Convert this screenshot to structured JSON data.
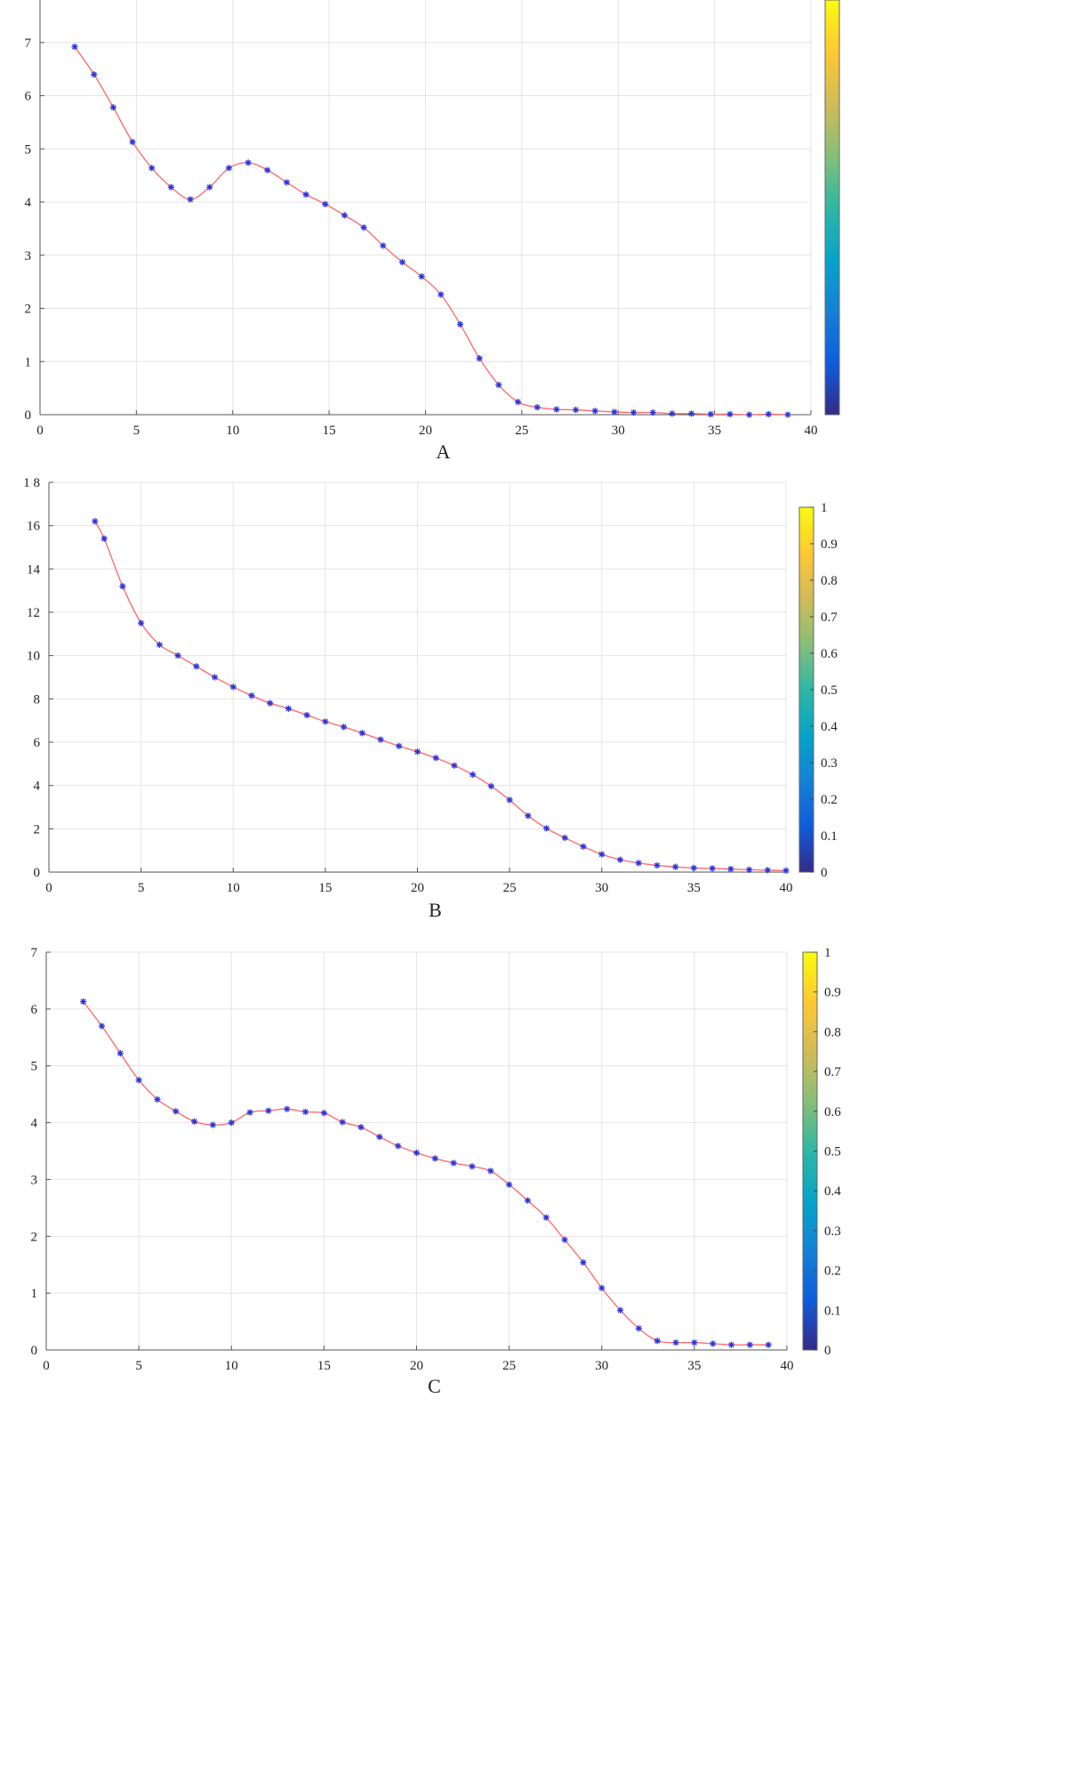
{
  "chart_data": [
    {
      "type": "line",
      "panel_label": "A",
      "xlim": [
        0,
        40
      ],
      "ylim": [
        0,
        7.8
      ],
      "xticks": [
        0,
        5,
        10,
        15,
        20,
        25,
        30,
        35,
        40
      ],
      "yticks": [
        0,
        1,
        2,
        3,
        4,
        5,
        6,
        7
      ],
      "ytick_labels": [
        "0",
        "1",
        "2",
        "3",
        "4",
        "5",
        "6",
        "7"
      ],
      "grid": true,
      "marker": "asterisk",
      "marker_color": "#2c35d8",
      "line_color": "#ff6f6f",
      "colorbar": {
        "range": [
          0,
          1
        ],
        "ticks": [],
        "colormap": "parula"
      },
      "series": [
        {
          "x": [
            1.8,
            2.8,
            3.8,
            4.8,
            5.8,
            6.8,
            7.8,
            8.8,
            9.8,
            10.8,
            11.8,
            12.8,
            13.8,
            14.8,
            15.8,
            16.8,
            17.8,
            18.8,
            19.8,
            20.8,
            21.8,
            22.8,
            23.8,
            24.8,
            25.8,
            26.8,
            27.8,
            28.8,
            29.8,
            30.8,
            31.8,
            32.8,
            33.8,
            34.8,
            35.8,
            36.8,
            37.8,
            38.8
          ],
          "y": [
            6.92,
            6.4,
            5.78,
            5.13,
            4.64,
            4.28,
            4.05,
            4.28,
            4.64,
            4.74,
            4.6,
            4.37,
            4.14,
            3.96,
            3.75,
            3.52,
            3.18,
            2.87,
            2.6,
            2.26,
            1.7,
            1.06,
            0.56,
            0.24,
            0.14,
            0.1,
            0.09,
            0.07,
            0.05,
            0.04,
            0.04,
            0.02,
            0.02,
            0.01,
            0.01,
            0.0,
            0.01,
            0.0
          ]
        }
      ]
    },
    {
      "type": "line",
      "panel_label": "B",
      "xlim": [
        0,
        40
      ],
      "ylim": [
        0,
        18
      ],
      "xticks": [
        0,
        5,
        10,
        15,
        20,
        25,
        30,
        35,
        40
      ],
      "yticks": [
        0,
        2,
        4,
        6,
        8,
        10,
        12,
        14,
        16,
        18
      ],
      "ytick_labels": [
        "0",
        "2",
        "4",
        "6",
        "8",
        "10",
        "12",
        "14",
        "16",
        "1 8"
      ],
      "grid": true,
      "marker": "asterisk",
      "marker_color": "#2c35d8",
      "line_color": "#ff6f6f",
      "colorbar": {
        "range": [
          0,
          1
        ],
        "ticks": [
          "0",
          "0.1",
          "0.2",
          "0.3",
          "0.4",
          "0.5",
          "0.6",
          "0.7",
          "0.8",
          "0.9",
          "1"
        ],
        "colormap": "parula"
      },
      "series": [
        {
          "x": [
            2.5,
            3.0,
            4.0,
            5.0,
            6.0,
            7.0,
            8.0,
            9.0,
            10.0,
            11.0,
            12.0,
            13.0,
            14.0,
            15.0,
            16.0,
            17.0,
            18.0,
            19.0,
            20.0,
            21.0,
            22.0,
            23.0,
            24.0,
            25.0,
            26.0,
            27.0,
            28.0,
            29.0,
            30.0,
            31.0,
            32.0,
            33.0,
            34.0,
            35.0,
            36.0,
            37.0,
            38.0,
            39.0,
            40.0
          ],
          "y": [
            16.2,
            15.4,
            13.2,
            11.5,
            10.5,
            10.0,
            9.5,
            9.0,
            8.55,
            8.15,
            7.8,
            7.55,
            7.25,
            6.95,
            6.7,
            6.42,
            6.12,
            5.82,
            5.56,
            5.27,
            4.92,
            4.5,
            3.97,
            3.33,
            2.6,
            2.02,
            1.58,
            1.18,
            0.82,
            0.57,
            0.42,
            0.31,
            0.24,
            0.19,
            0.17,
            0.14,
            0.11,
            0.09,
            0.07
          ]
        }
      ]
    },
    {
      "type": "line",
      "panel_label": "C",
      "xlim": [
        0,
        40
      ],
      "ylim": [
        0,
        7
      ],
      "xticks": [
        0,
        5,
        10,
        15,
        20,
        25,
        30,
        35,
        40
      ],
      "yticks": [
        0,
        1,
        2,
        3,
        4,
        5,
        6,
        7
      ],
      "ytick_labels": [
        "0",
        "1",
        "2",
        "3",
        "4",
        "5",
        "6",
        "7"
      ],
      "grid": true,
      "marker": "asterisk",
      "marker_color": "#2c35d8",
      "line_color": "#ff6f6f",
      "colorbar": {
        "range": [
          0,
          1
        ],
        "ticks": [
          "0",
          "0.1",
          "0.2",
          "0.3",
          "0.4",
          "0.5",
          "0.6",
          "0.7",
          "0.8",
          "0.9",
          "1"
        ],
        "colormap": "parula"
      },
      "series": [
        {
          "x": [
            2,
            3,
            4,
            5,
            6,
            7,
            8,
            9,
            10,
            11,
            12,
            13,
            14,
            15,
            16,
            17,
            18,
            19,
            20,
            21,
            22,
            23,
            24,
            25,
            26,
            27,
            28,
            29,
            30,
            31,
            32,
            33,
            34,
            35,
            36,
            37,
            38,
            39
          ],
          "y": [
            6.13,
            5.7,
            5.22,
            4.75,
            4.41,
            4.2,
            4.02,
            3.96,
            4.0,
            4.18,
            4.21,
            4.24,
            4.19,
            4.17,
            4.01,
            3.92,
            3.75,
            3.59,
            3.47,
            3.37,
            3.29,
            3.23,
            3.15,
            2.91,
            2.63,
            2.33,
            1.94,
            1.54,
            1.09,
            0.7,
            0.38,
            0.16,
            0.13,
            0.13,
            0.11,
            0.09,
            0.09,
            0.09
          ]
        }
      ]
    }
  ]
}
